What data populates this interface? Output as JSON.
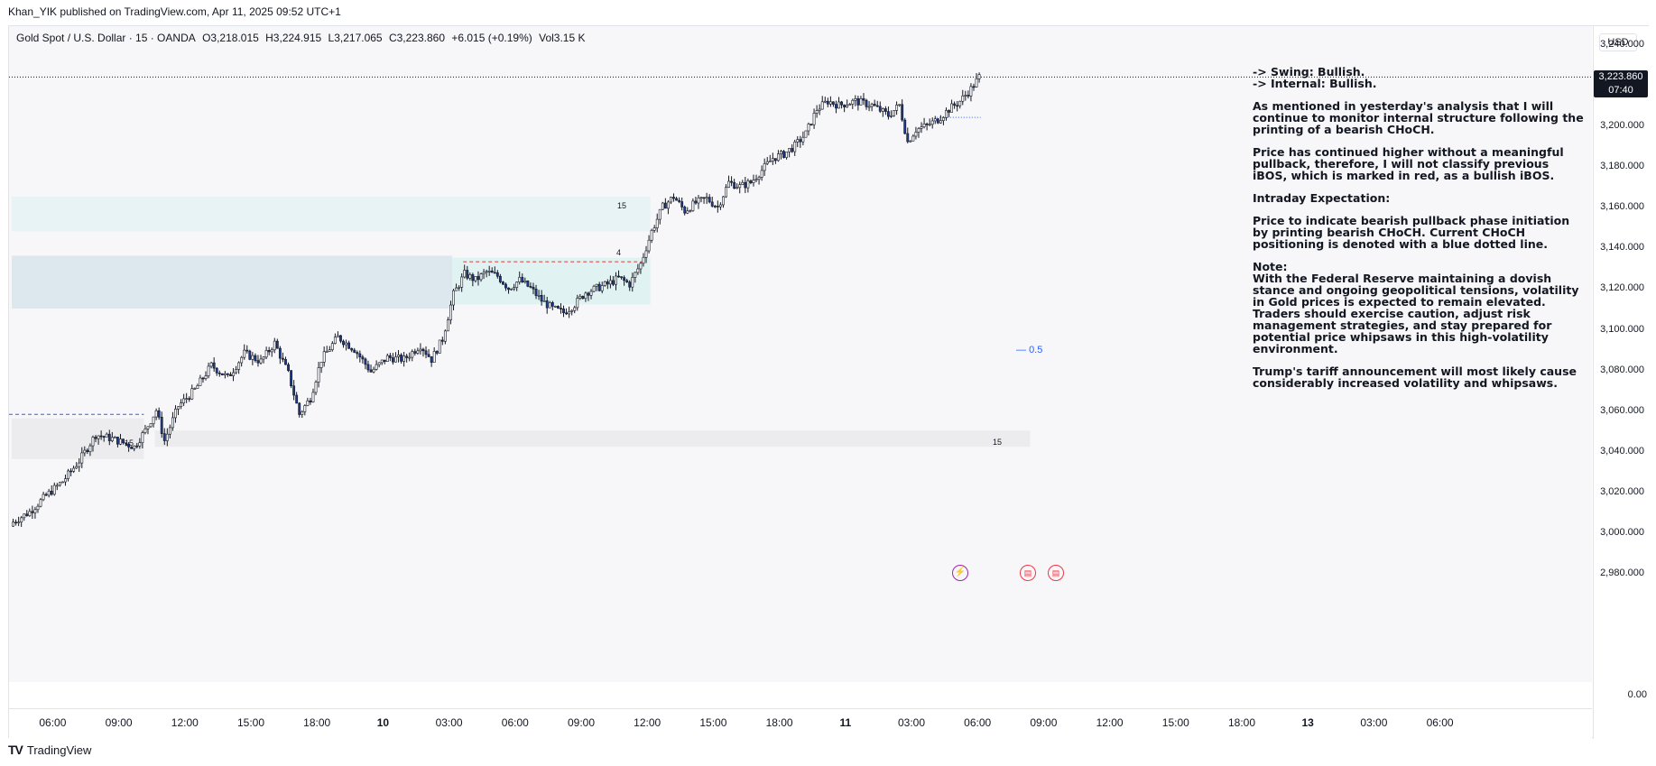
{
  "publisher_line": "Khan_YIK published on TradingView.com, Apr 11, 2025 09:52 UTC+1",
  "symbol": {
    "name": "Gold Spot / U.S. Dollar · 15 · OANDA",
    "open": "O3,218.015",
    "high": "H3,224.915",
    "low": "L3,217.065",
    "close": "C3,223.860",
    "change": "+6.015 (+0.19%)",
    "volume": "Vol3.15 K",
    "change_color": "#089981"
  },
  "price_axis": {
    "currency": "USD",
    "ticks": [
      "3,240.000",
      "3,220.000",
      "3,200.000",
      "3,180.000",
      "3,160.000",
      "3,140.000",
      "3,120.000",
      "3,100.000",
      "3,080.000",
      "3,060.000",
      "3,040.000",
      "3,020.000",
      "3,000.000",
      "2,980.000"
    ],
    "last_price": "3,223.860",
    "last_price_timer": "07:40",
    "volume_axis_zero": "0.00"
  },
  "time_axis": {
    "ticks": [
      {
        "label": "06:00",
        "bold": false
      },
      {
        "label": "09:00",
        "bold": false
      },
      {
        "label": "12:00",
        "bold": false
      },
      {
        "label": "15:00",
        "bold": false
      },
      {
        "label": "18:00",
        "bold": false
      },
      {
        "label": "10",
        "bold": true
      },
      {
        "label": "03:00",
        "bold": false
      },
      {
        "label": "06:00",
        "bold": false
      },
      {
        "label": "09:00",
        "bold": false
      },
      {
        "label": "12:00",
        "bold": false
      },
      {
        "label": "15:00",
        "bold": false
      },
      {
        "label": "18:00",
        "bold": false
      },
      {
        "label": "11",
        "bold": true
      },
      {
        "label": "03:00",
        "bold": false
      },
      {
        "label": "06:00",
        "bold": false
      },
      {
        "label": "09:00",
        "bold": false
      },
      {
        "label": "12:00",
        "bold": false
      },
      {
        "label": "15:00",
        "bold": false
      },
      {
        "label": "18:00",
        "bold": false
      },
      {
        "label": "13",
        "bold": true
      },
      {
        "label": "03:00",
        "bold": false
      },
      {
        "label": "06:00",
        "bold": false
      }
    ]
  },
  "chart_data": {
    "type": "candlestick",
    "title": "Gold Spot / U.S. Dollar · 15 · OANDA",
    "ylim": [
      2980,
      3240
    ],
    "up_color": "#ffffff",
    "down_color": "#1e3a8a",
    "close_path": [
      [
        0,
        3005
      ],
      [
        6,
        3010
      ],
      [
        12,
        3018
      ],
      [
        18,
        3025
      ],
      [
        24,
        3035
      ],
      [
        30,
        3048
      ],
      [
        36,
        3046
      ],
      [
        40,
        3044
      ],
      [
        44,
        3042
      ],
      [
        48,
        3050
      ],
      [
        52,
        3060
      ],
      [
        55,
        3045
      ],
      [
        60,
        3062
      ],
      [
        66,
        3070
      ],
      [
        72,
        3082
      ],
      [
        78,
        3076
      ],
      [
        84,
        3088
      ],
      [
        90,
        3084
      ],
      [
        95,
        3093
      ],
      [
        100,
        3078
      ],
      [
        104,
        3058
      ],
      [
        108,
        3066
      ],
      [
        112,
        3085
      ],
      [
        118,
        3096
      ],
      [
        124,
        3090
      ],
      [
        130,
        3079
      ],
      [
        136,
        3086
      ],
      [
        142,
        3085
      ],
      [
        148,
        3092
      ],
      [
        152,
        3085
      ],
      [
        156,
        3095
      ],
      [
        160,
        3117
      ],
      [
        164,
        3127
      ],
      [
        168,
        3124
      ],
      [
        172,
        3128
      ],
      [
        176,
        3126
      ],
      [
        180,
        3120
      ],
      [
        184,
        3124
      ],
      [
        188,
        3120
      ],
      [
        192,
        3114
      ],
      [
        196,
        3110
      ],
      [
        200,
        3108
      ],
      [
        204,
        3112
      ],
      [
        208,
        3118
      ],
      [
        212,
        3120
      ],
      [
        216,
        3122
      ],
      [
        220,
        3125
      ],
      [
        224,
        3122
      ],
      [
        228,
        3132
      ],
      [
        232,
        3148
      ],
      [
        236,
        3160
      ],
      [
        240,
        3165
      ],
      [
        244,
        3158
      ],
      [
        248,
        3162
      ],
      [
        252,
        3164
      ],
      [
        256,
        3160
      ],
      [
        260,
        3172
      ],
      [
        264,
        3170
      ],
      [
        268,
        3172
      ],
      [
        272,
        3178
      ],
      [
        276,
        3184
      ],
      [
        280,
        3186
      ],
      [
        284,
        3190
      ],
      [
        288,
        3196
      ],
      [
        292,
        3208
      ],
      [
        296,
        3212
      ],
      [
        300,
        3210
      ],
      [
        306,
        3212
      ],
      [
        312,
        3210
      ],
      [
        318,
        3205
      ],
      [
        322,
        3210
      ],
      [
        325,
        3192
      ],
      [
        328,
        3198
      ],
      [
        332,
        3200
      ],
      [
        336,
        3203
      ],
      [
        340,
        3208
      ],
      [
        344,
        3212
      ],
      [
        348,
        3218
      ],
      [
        351,
        3223.86
      ]
    ],
    "zones": [
      {
        "label": "15",
        "from_bar": 0,
        "to_bar": 232,
        "low": 3148,
        "high": 3165,
        "color": "#e7f3f5"
      },
      {
        "label": "",
        "from_bar": 0,
        "to_bar": 160,
        "low": 3110,
        "high": 3136,
        "color": "#dde8ee"
      },
      {
        "label": "",
        "from_bar": 160,
        "to_bar": 232,
        "low": 3112,
        "high": 3135,
        "color": "#e1f2f3"
      },
      {
        "label": "15",
        "from_bar": 0,
        "to_bar": 48,
        "low": 3036,
        "high": 3056,
        "color": "#ececee"
      },
      {
        "label": "15",
        "from_bar": 52,
        "to_bar": 370,
        "low": 3042,
        "high": 3050,
        "color": "#ececee"
      }
    ],
    "zone_labels": [
      "15",
      "15",
      "15"
    ],
    "swing_label": "4",
    "levels": [
      {
        "name": "bearish-choch",
        "price": 3133,
        "color": "#e53935",
        "style": "dashed"
      },
      {
        "name": "blue-choch",
        "price": 3058,
        "color": "#2962ff",
        "style": "dashed"
      },
      {
        "name": "current-choch",
        "price": 3204,
        "color": "#2962ff",
        "style": "dotted"
      },
      {
        "name": "last-price-line",
        "price": 3223.86,
        "color": "#131722",
        "style": "dotted"
      }
    ],
    "fib_label": "0.5",
    "fib_price": 3097
  },
  "notes": {
    "swing": "-> Swing:  Bullish.",
    "internal": "-> Internal:  Bullish.",
    "p1": "As mentioned in yesterday's analysis that I will continue to monitor internal structure following the printing of a bearish CHoCH.",
    "p2": "Price has continued higher without a meaningful pullback, therefore, I will not classify previous iBOS, which is marked in red, as a bullish iBOS.",
    "p3_title": "Intraday Expectation:",
    "p3": "Price to indicate bearish pullback phase initiation by printing bearish CHoCH.  Current CHoCH positioning is denoted with a blue dotted line.",
    "p4_title": "Note:",
    "p4": "With the Federal Reserve maintaining a dovish stance and ongoing geopolitical tensions, volatility in Gold prices is expected to remain elevated. Traders should exercise caution, adjust risk management strategies, and stay prepared for potential price whipsaws in this high-volatility environment.",
    "p5": "Trump's tariff announcement will most likely cause considerably increased volatility and whipsaws."
  },
  "events": [
    {
      "icon": "lightning-event-icon"
    },
    {
      "icon": "us-flag-event-icon"
    },
    {
      "icon": "us-flag-event-icon"
    }
  ],
  "footer": {
    "brand": "TradingView",
    "logo": "TV"
  }
}
